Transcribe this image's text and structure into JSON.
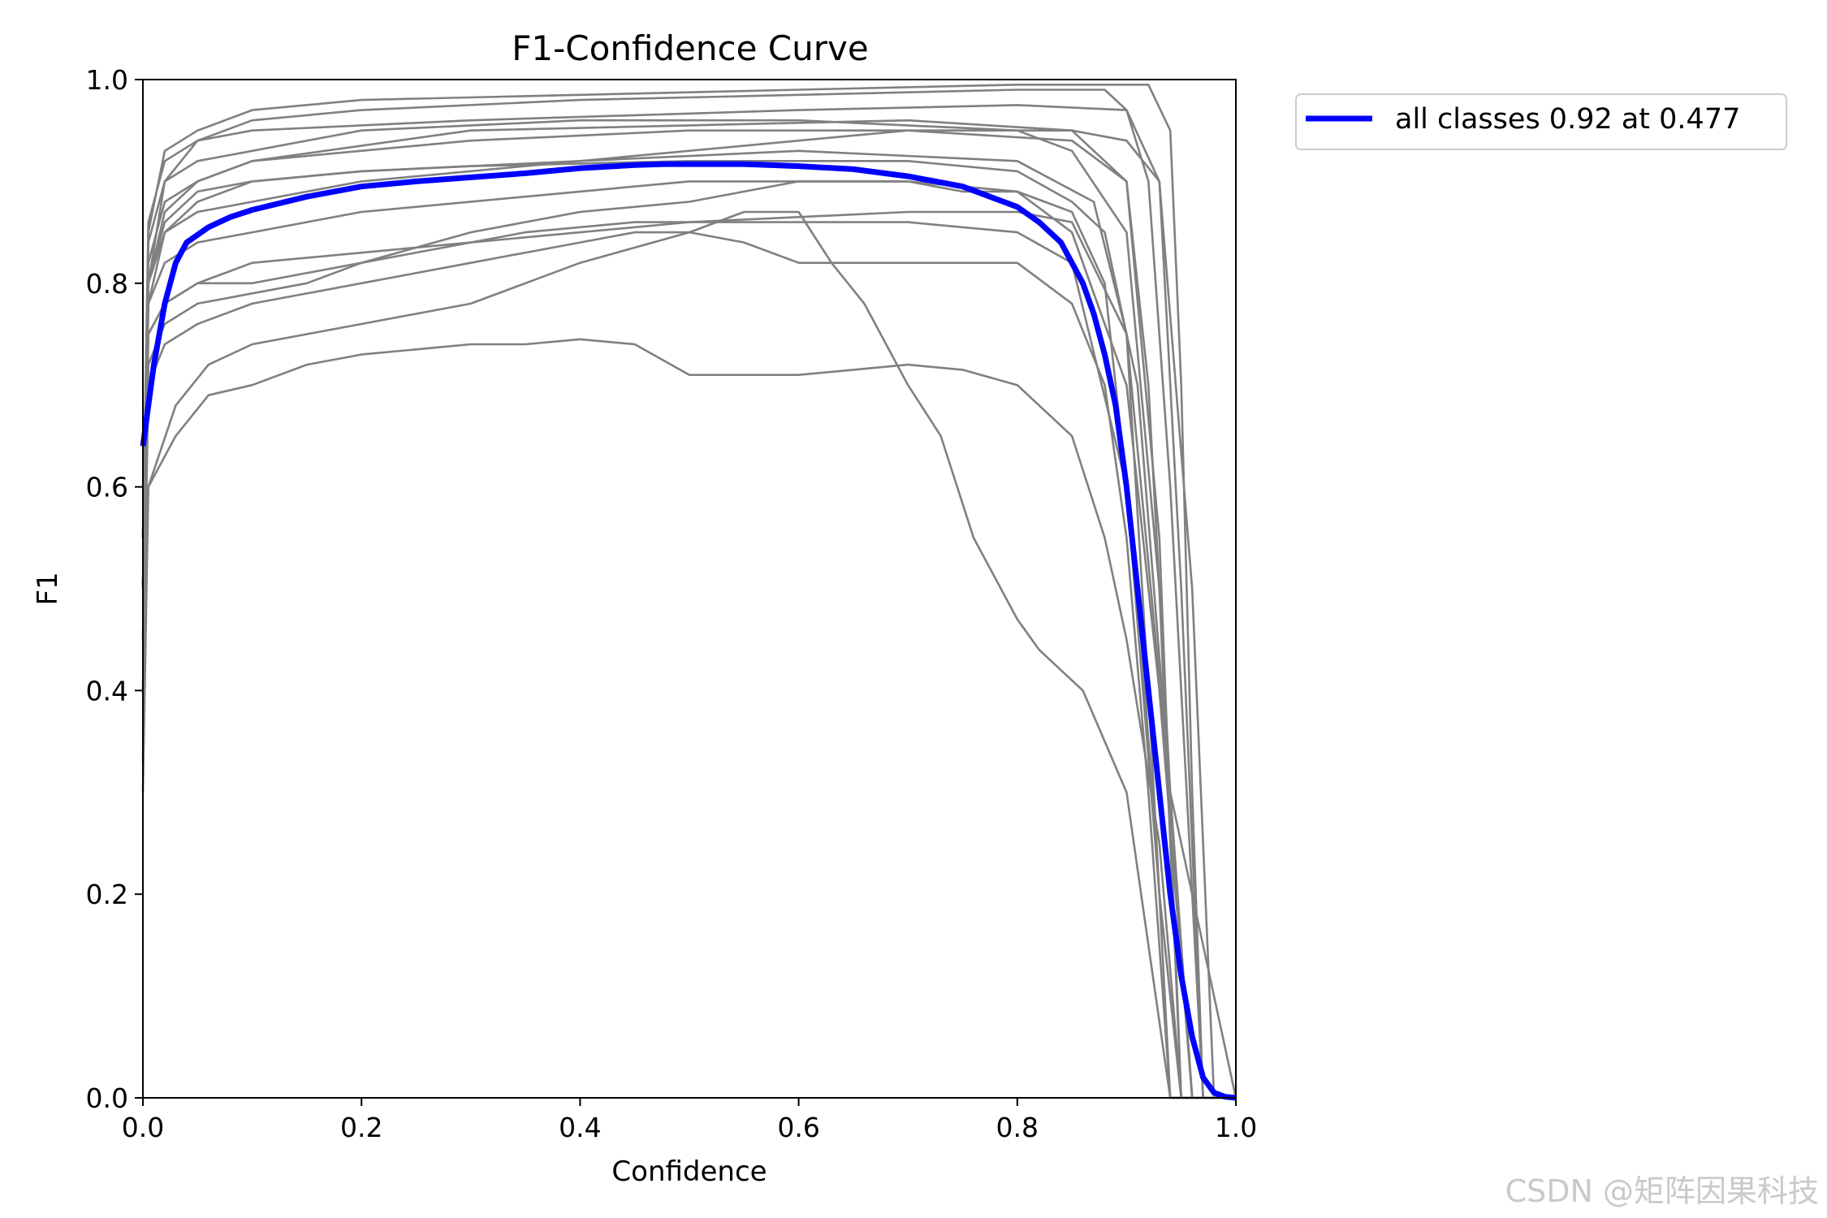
{
  "chart_data": {
    "type": "line",
    "title": "F1-Confidence Curve",
    "xlabel": "Confidence",
    "ylabel": "F1",
    "xlim": [
      0.0,
      1.0
    ],
    "ylim": [
      0.0,
      1.0
    ],
    "xticks": [
      "0.0",
      "0.2",
      "0.4",
      "0.6",
      "0.8",
      "1.0"
    ],
    "yticks": [
      "0.0",
      "0.2",
      "0.4",
      "0.6",
      "0.8",
      "1.0"
    ],
    "grid": false,
    "legend": {
      "placement": "outside-top-right",
      "entries": [
        {
          "label": "all classes 0.92 at 0.477",
          "color": "#0000ff"
        }
      ]
    },
    "watermark": "CSDN @矩阵因果科技",
    "series": [
      {
        "name": "all classes 0.92 at 0.477",
        "color": "#0000ff",
        "x": [
          0.0,
          0.005,
          0.01,
          0.02,
          0.03,
          0.04,
          0.06,
          0.08,
          0.1,
          0.15,
          0.2,
          0.25,
          0.3,
          0.35,
          0.4,
          0.45,
          0.477,
          0.5,
          0.55,
          0.6,
          0.65,
          0.7,
          0.75,
          0.8,
          0.82,
          0.84,
          0.86,
          0.87,
          0.88,
          0.89,
          0.9,
          0.91,
          0.92,
          0.93,
          0.94,
          0.95,
          0.96,
          0.97,
          0.98,
          0.99,
          1.0
        ],
        "y": [
          0.64,
          0.68,
          0.72,
          0.78,
          0.82,
          0.84,
          0.855,
          0.865,
          0.872,
          0.885,
          0.895,
          0.9,
          0.904,
          0.908,
          0.913,
          0.916,
          0.917,
          0.917,
          0.917,
          0.915,
          0.912,
          0.905,
          0.895,
          0.875,
          0.86,
          0.84,
          0.8,
          0.77,
          0.73,
          0.68,
          0.6,
          0.5,
          0.4,
          0.3,
          0.2,
          0.12,
          0.06,
          0.02,
          0.005,
          0.001,
          0.0
        ]
      },
      {
        "name": "",
        "color": "#808080",
        "x": [
          0.0,
          0.005,
          0.02,
          0.05,
          0.1,
          0.2,
          0.4,
          0.6,
          0.8,
          0.88,
          0.9,
          0.92,
          0.94,
          0.96,
          0.97,
          1.0
        ],
        "y": [
          0.33,
          0.8,
          0.9,
          0.94,
          0.96,
          0.97,
          0.98,
          0.985,
          0.99,
          0.99,
          0.97,
          0.9,
          0.6,
          0.2,
          0.0,
          0.0
        ]
      },
      {
        "name": "",
        "color": "#808080",
        "x": [
          0.0,
          0.005,
          0.02,
          0.05,
          0.1,
          0.2,
          0.4,
          0.6,
          0.8,
          0.92,
          0.94,
          0.95,
          0.96,
          0.97,
          1.0
        ],
        "y": [
          0.5,
          0.85,
          0.93,
          0.95,
          0.97,
          0.98,
          0.985,
          0.99,
          0.995,
          0.995,
          0.95,
          0.7,
          0.3,
          0.0,
          0.0
        ]
      },
      {
        "name": "",
        "color": "#808080",
        "x": [
          0.0,
          0.005,
          0.02,
          0.05,
          0.1,
          0.3,
          0.6,
          0.8,
          0.9,
          0.93,
          0.95,
          0.97,
          1.0
        ],
        "y": [
          0.55,
          0.86,
          0.92,
          0.94,
          0.95,
          0.96,
          0.97,
          0.975,
          0.97,
          0.9,
          0.5,
          0.0,
          0.0
        ]
      },
      {
        "name": "",
        "color": "#808080",
        "x": [
          0.0,
          0.005,
          0.02,
          0.05,
          0.1,
          0.2,
          0.4,
          0.6,
          0.8,
          0.85,
          0.9,
          0.93,
          0.95,
          1.0
        ],
        "y": [
          0.55,
          0.84,
          0.9,
          0.92,
          0.93,
          0.95,
          0.96,
          0.96,
          0.95,
          0.93,
          0.85,
          0.5,
          0.0,
          0.0
        ]
      },
      {
        "name": "",
        "color": "#808080",
        "x": [
          0.0,
          0.005,
          0.02,
          0.05,
          0.1,
          0.3,
          0.5,
          0.7,
          0.85,
          0.9,
          0.93,
          0.95,
          1.0
        ],
        "y": [
          0.5,
          0.82,
          0.88,
          0.9,
          0.92,
          0.95,
          0.955,
          0.96,
          0.95,
          0.9,
          0.55,
          0.0,
          0.0
        ]
      },
      {
        "name": "",
        "color": "#808080",
        "x": [
          0.0,
          0.005,
          0.02,
          0.05,
          0.1,
          0.3,
          0.5,
          0.7,
          0.85,
          0.9,
          0.92,
          0.94,
          0.96,
          1.0
        ],
        "y": [
          0.5,
          0.8,
          0.87,
          0.9,
          0.92,
          0.94,
          0.95,
          0.95,
          0.94,
          0.9,
          0.7,
          0.3,
          0.0,
          0.0
        ]
      },
      {
        "name": "",
        "color": "#808080",
        "x": [
          0.0,
          0.005,
          0.02,
          0.05,
          0.1,
          0.2,
          0.4,
          0.6,
          0.8,
          0.87,
          0.9,
          0.92,
          0.94,
          1.0
        ],
        "y": [
          0.45,
          0.78,
          0.85,
          0.88,
          0.9,
          0.91,
          0.92,
          0.93,
          0.92,
          0.88,
          0.75,
          0.4,
          0.0,
          0.0
        ]
      },
      {
        "name": "",
        "color": "#808080",
        "x": [
          0.0,
          0.005,
          0.02,
          0.05,
          0.1,
          0.2,
          0.4,
          0.5,
          0.6,
          0.7,
          0.8,
          0.85,
          0.88,
          0.91,
          0.93,
          0.95,
          1.0
        ],
        "y": [
          0.5,
          0.78,
          0.82,
          0.84,
          0.85,
          0.87,
          0.89,
          0.9,
          0.9,
          0.9,
          0.89,
          0.87,
          0.8,
          0.5,
          0.2,
          0.0,
          0.0
        ]
      },
      {
        "name": "",
        "color": "#808080",
        "x": [
          0.0,
          0.005,
          0.02,
          0.05,
          0.1,
          0.15,
          0.2,
          0.3,
          0.4,
          0.5,
          0.6,
          0.7,
          0.8,
          0.85,
          0.9,
          0.93,
          0.95,
          1.0
        ],
        "y": [
          0.4,
          0.72,
          0.76,
          0.78,
          0.79,
          0.8,
          0.82,
          0.84,
          0.85,
          0.86,
          0.86,
          0.86,
          0.85,
          0.82,
          0.6,
          0.2,
          0.0,
          0.0
        ]
      },
      {
        "name": "",
        "color": "#808080",
        "x": [
          0.0,
          0.005,
          0.02,
          0.05,
          0.1,
          0.2,
          0.3,
          0.4,
          0.45,
          0.5,
          0.55,
          0.6,
          0.7,
          0.8,
          0.85,
          0.88,
          0.9,
          0.92,
          0.94,
          1.0
        ],
        "y": [
          0.4,
          0.7,
          0.74,
          0.76,
          0.78,
          0.8,
          0.82,
          0.84,
          0.85,
          0.85,
          0.84,
          0.82,
          0.82,
          0.82,
          0.78,
          0.7,
          0.55,
          0.3,
          0.0,
          0.0
        ]
      },
      {
        "name": "",
        "color": "#808080",
        "x": [
          0.0,
          0.005,
          0.03,
          0.06,
          0.1,
          0.15,
          0.2,
          0.3,
          0.35,
          0.4,
          0.5,
          0.55,
          0.6,
          0.63,
          0.66,
          0.7,
          0.73,
          0.76,
          0.8,
          0.82,
          0.84,
          0.86,
          0.88,
          0.9,
          0.92,
          0.94,
          1.0
        ],
        "y": [
          0.3,
          0.6,
          0.68,
          0.72,
          0.74,
          0.75,
          0.76,
          0.78,
          0.8,
          0.82,
          0.85,
          0.87,
          0.87,
          0.82,
          0.78,
          0.7,
          0.65,
          0.55,
          0.47,
          0.44,
          0.42,
          0.4,
          0.35,
          0.3,
          0.15,
          0.0,
          0.0
        ]
      },
      {
        "name": "",
        "color": "#808080",
        "x": [
          0.0,
          0.005,
          0.03,
          0.06,
          0.1,
          0.15,
          0.2,
          0.25,
          0.3,
          0.35,
          0.4,
          0.45,
          0.5,
          0.55,
          0.6,
          0.65,
          0.7,
          0.75,
          0.8,
          0.85,
          0.88,
          0.9,
          0.93,
          0.95,
          1.0
        ],
        "y": [
          0.5,
          0.6,
          0.65,
          0.69,
          0.7,
          0.72,
          0.73,
          0.735,
          0.74,
          0.74,
          0.745,
          0.74,
          0.71,
          0.71,
          0.71,
          0.715,
          0.72,
          0.715,
          0.7,
          0.65,
          0.55,
          0.45,
          0.25,
          0.0,
          0.0
        ]
      },
      {
        "name": "",
        "color": "#808080",
        "x": [
          0.0,
          0.005,
          0.02,
          0.05,
          0.1,
          0.2,
          0.3,
          0.4,
          0.5,
          0.55,
          0.6,
          0.7,
          0.75,
          0.8,
          0.85,
          0.9,
          0.93,
          0.96,
          1.0
        ],
        "y": [
          0.5,
          0.75,
          0.78,
          0.8,
          0.8,
          0.82,
          0.85,
          0.87,
          0.88,
          0.89,
          0.9,
          0.9,
          0.89,
          0.89,
          0.85,
          0.7,
          0.4,
          0.0,
          0.0
        ]
      },
      {
        "name": "",
        "color": "#808080",
        "x": [
          0.0,
          0.005,
          0.02,
          0.05,
          0.1,
          0.2,
          0.4,
          0.6,
          0.7,
          0.8,
          0.85,
          0.9,
          0.93,
          0.96,
          0.98,
          1.0
        ],
        "y": [
          0.55,
          0.8,
          0.85,
          0.87,
          0.88,
          0.9,
          0.92,
          0.94,
          0.95,
          0.95,
          0.95,
          0.94,
          0.9,
          0.5,
          0.0,
          0.0
        ]
      },
      {
        "name": "",
        "color": "#808080",
        "x": [
          0.0,
          0.005,
          0.02,
          0.05,
          0.1,
          0.2,
          0.3,
          0.5,
          0.7,
          0.8,
          0.85,
          0.88,
          0.91,
          0.94,
          0.96,
          1.0
        ],
        "y": [
          0.5,
          0.8,
          0.86,
          0.89,
          0.9,
          0.91,
          0.915,
          0.92,
          0.92,
          0.91,
          0.88,
          0.85,
          0.7,
          0.3,
          0.0,
          0.0
        ]
      },
      {
        "name": "",
        "color": "#808080",
        "x": [
          0.0,
          0.005,
          0.02,
          0.05,
          0.1,
          0.2,
          0.3,
          0.35,
          0.4,
          0.45,
          0.5,
          0.6,
          0.7,
          0.8,
          0.85,
          0.9,
          0.94,
          1.0
        ],
        "y": [
          0.45,
          0.75,
          0.78,
          0.8,
          0.82,
          0.83,
          0.84,
          0.85,
          0.855,
          0.86,
          0.86,
          0.865,
          0.87,
          0.87,
          0.86,
          0.75,
          0.3,
          0.0
        ]
      }
    ]
  }
}
